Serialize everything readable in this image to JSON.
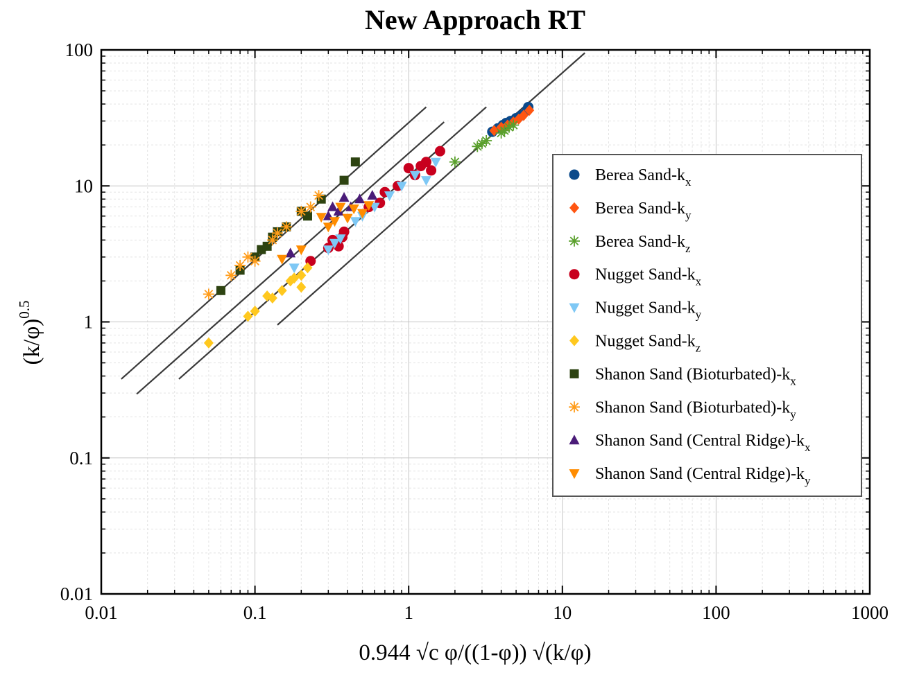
{
  "chart_data": {
    "type": "scatter",
    "title": "New Approach RT",
    "xlabel": "0.944 √c  φ/((1-φ)) √(k/φ)",
    "ylabel": {
      "main": "(k/φ)",
      "sup": "0.5"
    },
    "x_scale": "log",
    "y_scale": "log",
    "xlim": [
      0.01,
      1000
    ],
    "ylim": [
      0.01,
      100
    ],
    "x_ticks": [
      {
        "v": 0.01,
        "label": "0.01"
      },
      {
        "v": 0.1,
        "label": "0.1"
      },
      {
        "v": 1,
        "label": "1"
      },
      {
        "v": 10,
        "label": "10"
      },
      {
        "v": 100,
        "label": "100"
      },
      {
        "v": 1000,
        "label": "1000"
      }
    ],
    "y_ticks": [
      {
        "v": 0.01,
        "label": "0.01"
      },
      {
        "v": 0.1,
        "label": "0.1"
      },
      {
        "v": 1,
        "label": "1"
      },
      {
        "v": 10,
        "label": "10"
      },
      {
        "v": 100,
        "label": "100"
      }
    ],
    "grid": true,
    "legend_position": "right",
    "lines": [
      {
        "x": [
          0.0135,
          1.3
        ],
        "y": [
          0.38,
          38
        ]
      },
      {
        "x": [
          0.017,
          1.7
        ],
        "y": [
          0.295,
          29.5
        ]
      },
      {
        "x": [
          0.032,
          3.2
        ],
        "y": [
          0.38,
          38
        ]
      },
      {
        "x": [
          0.14,
          14
        ],
        "y": [
          0.95,
          95
        ]
      }
    ],
    "series": [
      {
        "name": "Berea Sand-k",
        "sub": "x",
        "marker": "circle",
        "color": "#0b4a8b",
        "x": [
          3.5,
          3.8,
          4.1,
          4.3,
          4.6,
          5.0,
          5.4,
          5.9,
          6.0
        ],
        "y": [
          25,
          26.5,
          28,
          29,
          30,
          31.5,
          33,
          36,
          38
        ]
      },
      {
        "name": "Berea Sand-k",
        "sub": "y",
        "marker": "diamond",
        "color": "#ff5511",
        "x": [
          3.6,
          4.0,
          4.4,
          4.8,
          5.2,
          5.6,
          6.1
        ],
        "y": [
          25.5,
          27,
          28,
          29.5,
          31,
          33,
          36
        ]
      },
      {
        "name": "Berea Sand-k",
        "sub": "z",
        "marker": "asterisk",
        "color": "#5aa02c",
        "x": [
          2.0,
          2.8,
          3.0,
          3.2,
          4.0,
          4.2,
          4.5,
          4.8
        ],
        "y": [
          15,
          19.5,
          20.5,
          21.5,
          24.5,
          25.5,
          27,
          28
        ]
      },
      {
        "name": "Nugget Sand-k",
        "sub": "x",
        "marker": "circle",
        "color": "#c8001e",
        "x": [
          0.23,
          0.3,
          0.32,
          0.35,
          0.37,
          0.38,
          0.55,
          0.65,
          0.7,
          0.85,
          1.0,
          1.1,
          1.2,
          1.3,
          1.4,
          1.6
        ],
        "y": [
          2.8,
          3.5,
          4.0,
          3.6,
          4.2,
          4.6,
          7.0,
          7.5,
          9.0,
          10,
          13.5,
          12,
          14,
          15,
          13,
          18
        ]
      },
      {
        "name": "Nugget Sand-k",
        "sub": "y",
        "marker": "triangle-down",
        "color": "#7ec8f5",
        "x": [
          0.18,
          0.3,
          0.33,
          0.36,
          0.45,
          0.5,
          0.6,
          0.75,
          0.9,
          1.1,
          1.3,
          1.5
        ],
        "y": [
          2.5,
          3.4,
          3.8,
          4.1,
          5.5,
          6.0,
          7.0,
          8.5,
          10,
          12,
          11,
          15
        ]
      },
      {
        "name": "Nugget Sand-k",
        "sub": "z",
        "marker": "diamond",
        "color": "#ffc81e",
        "x": [
          0.05,
          0.09,
          0.1,
          0.12,
          0.13,
          0.15,
          0.17,
          0.18,
          0.2,
          0.2,
          0.22
        ],
        "y": [
          0.7,
          1.1,
          1.2,
          1.55,
          1.5,
          1.7,
          2.0,
          2.1,
          1.8,
          2.2,
          2.5
        ]
      },
      {
        "name": "Shanon Sand (Bioturbated)-k",
        "sub": "x",
        "marker": "square",
        "color": "#2d4311",
        "x": [
          0.06,
          0.08,
          0.1,
          0.11,
          0.12,
          0.13,
          0.14,
          0.16,
          0.2,
          0.22,
          0.27,
          0.38,
          0.45
        ],
        "y": [
          1.7,
          2.4,
          3.0,
          3.4,
          3.6,
          4.2,
          4.6,
          5.0,
          6.5,
          6.0,
          8.0,
          11,
          15
        ]
      },
      {
        "name": "Shanon Sand (Bioturbated)-k",
        "sub": "y",
        "marker": "asterisk",
        "color": "#ff9c1a",
        "x": [
          0.05,
          0.07,
          0.08,
          0.09,
          0.1,
          0.13,
          0.14,
          0.16,
          0.2,
          0.23,
          0.26
        ],
        "y": [
          1.6,
          2.2,
          2.6,
          3.0,
          2.8,
          4.0,
          4.5,
          5.0,
          6.5,
          7.0,
          8.5
        ]
      },
      {
        "name": "Shanon Sand (Central Ridge)-k",
        "sub": "x",
        "marker": "triangle-up",
        "color": "#4a1b78",
        "x": [
          0.17,
          0.3,
          0.32,
          0.35,
          0.38,
          0.42,
          0.48,
          0.58
        ],
        "y": [
          3.2,
          6.0,
          7.0,
          6.5,
          8.2,
          7.0,
          8.0,
          8.5
        ]
      },
      {
        "name": "Shanon Sand (Central Ridge)-k",
        "sub": "y",
        "marker": "triangle-down",
        "color": "#ff8c00",
        "x": [
          0.15,
          0.2,
          0.27,
          0.3,
          0.33,
          0.36,
          0.4,
          0.44,
          0.5,
          0.55
        ],
        "y": [
          2.9,
          3.4,
          5.9,
          5.0,
          5.5,
          7.0,
          5.8,
          6.8,
          6.3,
          7.2
        ]
      }
    ]
  }
}
